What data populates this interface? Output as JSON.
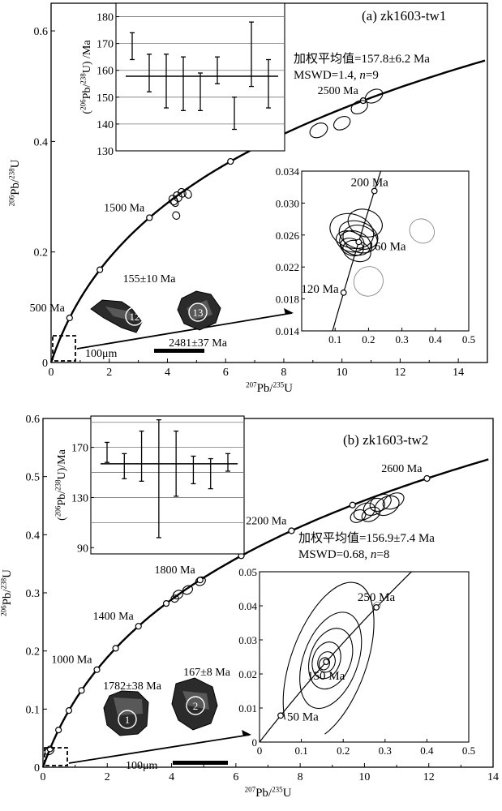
{
  "chart_data": [
    {
      "type": "scatter",
      "panel_label": "(a) zk1603-tw1",
      "xlabel_html": "207Pb/235U",
      "ylabel_html": "206Pb/238U",
      "xlim": [
        0,
        15
      ],
      "ylim": [
        0,
        0.65
      ],
      "x_ticks": [
        0,
        2,
        4,
        6,
        8,
        10,
        12,
        14
      ],
      "y_ticks": [
        0,
        0.2,
        0.4,
        0.6
      ],
      "y_tick_labels": [
        "0",
        "0.2",
        "0.4",
        "0.6"
      ],
      "concordia_age_labels": [
        {
          "age_ma": 500,
          "text": "500 Ma"
        },
        {
          "age_ma": 1500,
          "text": "1500 Ma"
        },
        {
          "age_ma": 2500,
          "text": "2500 Ma"
        }
      ],
      "concordia_markers_ma": [
        500,
        1000,
        1500,
        2000,
        2500
      ],
      "ellipses": [
        {
          "x": 4.2,
          "y": 0.294,
          "rx": 0.14,
          "ry": 0.009
        },
        {
          "x": 4.35,
          "y": 0.3,
          "rx": 0.14,
          "ry": 0.009
        },
        {
          "x": 4.5,
          "y": 0.307,
          "rx": 0.13,
          "ry": 0.008
        },
        {
          "x": 4.25,
          "y": 0.29,
          "rx": 0.12,
          "ry": 0.008
        },
        {
          "x": 4.7,
          "y": 0.305,
          "rx": 0.12,
          "ry": 0.008
        },
        {
          "x": 4.3,
          "y": 0.266,
          "rx": 0.12,
          "ry": 0.007
        },
        {
          "x": 9.2,
          "y": 0.42,
          "rx": 0.32,
          "ry": 0.012
        },
        {
          "x": 10.0,
          "y": 0.433,
          "rx": 0.3,
          "ry": 0.011
        },
        {
          "x": 10.6,
          "y": 0.462,
          "rx": 0.3,
          "ry": 0.011
        },
        {
          "x": 11.1,
          "y": 0.482,
          "rx": 0.32,
          "ry": 0.011
        }
      ],
      "grain_labels": {
        "grain_12_age": "155±10 Ma",
        "grain_12_id": "12",
        "grain_13_id": "13",
        "grain_13_age": "2481±37 Ma"
      },
      "scale_bar": "100μm",
      "weighted_mean": {
        "text": "加权平均值=157.8±6.2 Ma",
        "mswd": "MSWD=1.4, ",
        "n_label": "n",
        "n_value": "=9",
        "ylabel_html": "(206Pb/238U) /Ma",
        "ylim": [
          130,
          185
        ],
        "y_ticks": [
          130,
          140,
          150,
          160,
          170,
          180
        ],
        "mean": 157.8,
        "grid_lines": [
          140,
          150,
          160,
          170,
          180
        ],
        "values": [
          169,
          159,
          156,
          155,
          152,
          160,
          144,
          166,
          155
        ],
        "errors": [
          5,
          7,
          10,
          10,
          7,
          5,
          6,
          12,
          9
        ]
      },
      "inset": {
        "xlim": [
          0,
          0.5
        ],
        "ylim": [
          0.014,
          0.034
        ],
        "x_ticks": [
          0,
          0.1,
          0.2,
          0.3,
          0.4,
          0.5
        ],
        "x_tick_labels": [
          "0",
          "0.1",
          "0.2",
          "0.3",
          "0.4",
          "0.5"
        ],
        "y_ticks": [
          0.014,
          0.018,
          0.022,
          0.026,
          0.03,
          0.034
        ],
        "y_tick_labels": [
          "0.014",
          "0.018",
          "0.022",
          "0.026",
          "0.030",
          "0.034"
        ],
        "age_labels": [
          {
            "age_ma": 200,
            "text": "200 Ma"
          },
          {
            "age_ma": 160,
            "text": "160 Ma"
          },
          {
            "age_ma": 120,
            "text": "120 Ma"
          }
        ],
        "ellipses": [
          {
            "x": 0.15,
            "y": 0.0265,
            "rx": 0.05,
            "ry": 0.0028,
            "faint": false
          },
          {
            "x": 0.17,
            "y": 0.026,
            "rx": 0.04,
            "ry": 0.0025,
            "faint": false
          },
          {
            "x": 0.16,
            "y": 0.025,
            "rx": 0.035,
            "ry": 0.002,
            "faint": false
          },
          {
            "x": 0.145,
            "y": 0.0252,
            "rx": 0.03,
            "ry": 0.0018,
            "faint": false
          },
          {
            "x": 0.175,
            "y": 0.0255,
            "rx": 0.04,
            "ry": 0.0022,
            "faint": false
          },
          {
            "x": 0.165,
            "y": 0.024,
            "rx": 0.03,
            "ry": 0.0018,
            "faint": false
          },
          {
            "x": 0.19,
            "y": 0.0275,
            "rx": 0.04,
            "ry": 0.0022,
            "faint": false
          },
          {
            "x": 0.15,
            "y": 0.0245,
            "rx": 0.025,
            "ry": 0.0015,
            "faint": false
          },
          {
            "x": 0.36,
            "y": 0.0265,
            "rx": 0.035,
            "ry": 0.0016,
            "faint": true
          },
          {
            "x": 0.2,
            "y": 0.0202,
            "rx": 0.045,
            "ry": 0.0018,
            "faint": true
          }
        ]
      }
    },
    {
      "type": "scatter",
      "panel_label": "(b) zk1603-tw2",
      "xlabel_html": "207Pb/235U",
      "ylabel_html": "206Pb/238U",
      "xlim": [
        0,
        14
      ],
      "ylim": [
        0,
        0.6
      ],
      "x_ticks": [
        0,
        2,
        4,
        6,
        8,
        10,
        12,
        14
      ],
      "y_ticks": [
        0,
        0.1,
        0.2,
        0.3,
        0.4,
        0.5,
        0.6
      ],
      "y_tick_labels": [
        "0",
        "0.1",
        "0.2",
        "0.3",
        "0.4",
        "0.5",
        "0.6"
      ],
      "concordia_age_labels": [
        {
          "age_ma": 1000,
          "text": "1000 Ma"
        },
        {
          "age_ma": 1400,
          "text": "1400 Ma"
        },
        {
          "age_ma": 1800,
          "text": "1800 Ma"
        },
        {
          "age_ma": 2200,
          "text": "2200 Ma"
        },
        {
          "age_ma": 2600,
          "text": "2600 Ma"
        }
      ],
      "concordia_markers_ma": [
        200,
        400,
        600,
        800,
        1000,
        1200,
        1400,
        1600,
        1800,
        2000,
        2200,
        2400,
        2600
      ],
      "ellipses": [
        {
          "x": 4.2,
          "y": 0.297,
          "rx": 0.16,
          "ry": 0.007
        },
        {
          "x": 4.5,
          "y": 0.305,
          "rx": 0.16,
          "ry": 0.007
        },
        {
          "x": 4.9,
          "y": 0.32,
          "rx": 0.16,
          "ry": 0.007
        },
        {
          "x": 4.1,
          "y": 0.29,
          "rx": 0.12,
          "ry": 0.006
        },
        {
          "x": 10.0,
          "y": 0.44,
          "rx": 0.35,
          "ry": 0.013
        },
        {
          "x": 10.3,
          "y": 0.448,
          "rx": 0.35,
          "ry": 0.013
        },
        {
          "x": 10.5,
          "y": 0.455,
          "rx": 0.35,
          "ry": 0.013
        },
        {
          "x": 10.7,
          "y": 0.45,
          "rx": 0.4,
          "ry": 0.015
        },
        {
          "x": 10.9,
          "y": 0.458,
          "rx": 0.35,
          "ry": 0.012
        },
        {
          "x": 10.2,
          "y": 0.435,
          "rx": 0.3,
          "ry": 0.011
        },
        {
          "x": 9.8,
          "y": 0.432,
          "rx": 0.25,
          "ry": 0.01
        },
        {
          "x": 0.2,
          "y": 0.028,
          "rx": 0.15,
          "ry": 0.006
        }
      ],
      "grain_labels": {
        "grain_1_age": "1782±38 Ma",
        "grain_1_id": "1",
        "grain_2_age": "167±8 Ma",
        "grain_2_id": "2"
      },
      "scale_bar": "100μm",
      "weighted_mean": {
        "text": "加权平均值=156.9±7.4 Ma",
        "mswd": "MSWD=0.68, ",
        "n_label": "n",
        "n_value": "=8",
        "ylabel_html": "(206Pb/238U)/Ma",
        "ylim": [
          85,
          195
        ],
        "y_ticks": [
          90,
          130,
          170
        ],
        "mean": 156.9,
        "grid_lines": [
          110,
          130,
          150,
          170,
          190
        ],
        "values": [
          166,
          155,
          163,
          145,
          157,
          152,
          149,
          158
        ],
        "errors": [
          8,
          10,
          20,
          47,
          26,
          11,
          12,
          7
        ]
      },
      "inset": {
        "xlim": [
          0,
          0.5
        ],
        "ylim": [
          0,
          0.05
        ],
        "x_ticks": [
          0,
          0.1,
          0.2,
          0.3,
          0.4,
          0.5
        ],
        "x_tick_labels": [
          "0",
          "0.1",
          "0.2",
          "0.3",
          "0.4",
          "0.5"
        ],
        "y_ticks": [
          0,
          0.01,
          0.02,
          0.03,
          0.04,
          0.05
        ],
        "y_tick_labels": [
          "0",
          "0.01",
          "0.02",
          "0.03",
          "0.04",
          "0.05"
        ],
        "age_labels": [
          {
            "age_ma": 250,
            "text": "250 Ma"
          },
          {
            "age_ma": 150,
            "text": "150 Ma"
          },
          {
            "age_ma": 50,
            "text": "50 Ma"
          }
        ],
        "ellipses": [
          {
            "x": 0.165,
            "y": 0.0235,
            "rx": 0.2,
            "ry": 0.011,
            "faint": false
          },
          {
            "x": 0.17,
            "y": 0.024,
            "rx": 0.12,
            "ry": 0.008,
            "faint": false
          },
          {
            "x": 0.17,
            "y": 0.0245,
            "rx": 0.075,
            "ry": 0.006,
            "faint": false
          },
          {
            "x": 0.16,
            "y": 0.024,
            "rx": 0.045,
            "ry": 0.004,
            "faint": false
          },
          {
            "x": 0.16,
            "y": 0.0235,
            "rx": 0.025,
            "ry": 0.0025,
            "faint": false
          },
          {
            "x": 0.155,
            "y": 0.023,
            "rx": 0.015,
            "ry": 0.0015,
            "faint": false
          },
          {
            "x": 0.28,
            "y": 0.04,
            "rx": 0.01,
            "ry": 0.001,
            "faint": true
          }
        ]
      }
    }
  ]
}
